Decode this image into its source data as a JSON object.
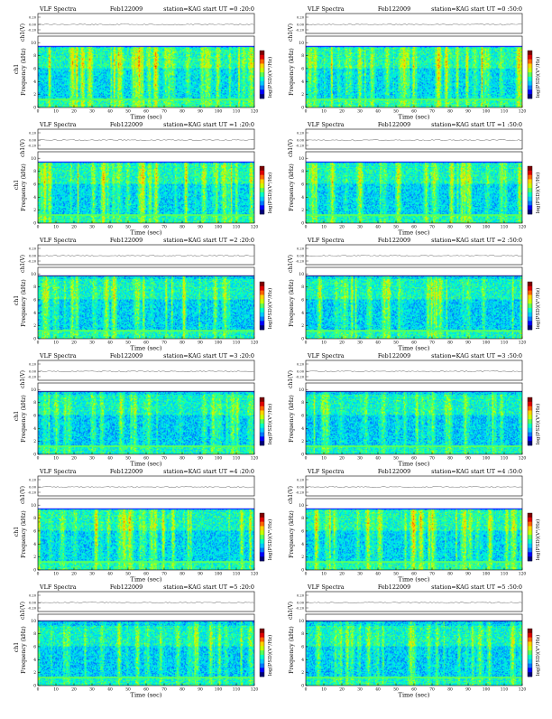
{
  "chart_data": [
    {
      "type": "heatmap",
      "title": "VLF Spectra",
      "date": "Feb122009",
      "station": "station=KAG",
      "start_label": "start  UT  =0 :20:0",
      "x": {
        "label": "Time  (sec)",
        "ticks": [
          0,
          10,
          20,
          30,
          40,
          50,
          60,
          70,
          80,
          90,
          100,
          110,
          120
        ],
        "range": [
          0,
          120
        ]
      },
      "y": {
        "label": "Frequency  (kHz)",
        "ticks": [
          0,
          2,
          4,
          6,
          8,
          10
        ],
        "range": [
          0,
          11
        ]
      },
      "channel": {
        "label": "ch1",
        "unit": "(V)",
        "ticks": [
          "0.20",
          "0.00",
          "-0.20"
        ]
      },
      "colorbar_label": "log(PSD)(V²/Hz)",
      "band_top_khz": 9.5,
      "activity": 0.85
    },
    {
      "type": "heatmap",
      "title": "VLF Spectra",
      "date": "Feb122009",
      "station": "station=KAG",
      "start_label": "start  UT  =0 :50:0",
      "x": {
        "label": "Time  (sec)",
        "ticks": [
          0,
          10,
          20,
          30,
          40,
          50,
          60,
          70,
          80,
          90,
          100,
          110,
          120
        ],
        "range": [
          0,
          120
        ]
      },
      "y": {
        "label": "Frequency  (kHz)",
        "ticks": [
          0,
          2,
          4,
          6,
          8,
          10
        ],
        "range": [
          0,
          11
        ]
      },
      "channel": {
        "label": "ch1",
        "unit": "(V)",
        "ticks": [
          "0.20",
          "0.00",
          "-0.20"
        ]
      },
      "colorbar_label": "log(PSD)(V²/Hz)",
      "band_top_khz": 9.5,
      "activity": 0.8
    },
    {
      "type": "heatmap",
      "title": "VLF Spectra",
      "date": "Feb122009",
      "station": "station=KAG",
      "start_label": "start  UT  =1 :20:0",
      "x": {
        "label": "Time  (sec)",
        "ticks": [
          0,
          10,
          20,
          30,
          40,
          50,
          60,
          70,
          80,
          90,
          100,
          110,
          120
        ],
        "range": [
          0,
          120
        ]
      },
      "y": {
        "label": "Frequency  (kHz)",
        "ticks": [
          0,
          2,
          4,
          6,
          8,
          10
        ],
        "range": [
          0,
          11
        ]
      },
      "channel": {
        "label": "ch1",
        "unit": "(V)",
        "ticks": [
          "0.20",
          "0.00",
          "-0.20"
        ]
      },
      "colorbar_label": "log(PSD)(V²/Hz)",
      "band_top_khz": 9.5,
      "activity": 0.75
    },
    {
      "type": "heatmap",
      "title": "VLF Spectra",
      "date": "Feb122009",
      "station": "station=KAG",
      "start_label": "start  UT  =1 :50:0",
      "x": {
        "label": "Time  (sec)",
        "ticks": [
          0,
          10,
          20,
          30,
          40,
          50,
          60,
          70,
          80,
          90,
          100,
          110,
          120
        ],
        "range": [
          0,
          120
        ]
      },
      "y": {
        "label": "Frequency  (kHz)",
        "ticks": [
          0,
          2,
          4,
          6,
          8,
          10
        ],
        "range": [
          0,
          11
        ]
      },
      "channel": {
        "label": "ch1",
        "unit": "(V)",
        "ticks": [
          "0.20",
          "0.00",
          "-0.20"
        ]
      },
      "colorbar_label": "log(PSD)(V²/Hz)",
      "band_top_khz": 9.5,
      "activity": 0.65
    },
    {
      "type": "heatmap",
      "title": "VLF Spectra",
      "date": "Feb122009",
      "station": "station=KAG",
      "start_label": "start  UT  =2 :20:0",
      "x": {
        "label": "Time  (sec)",
        "ticks": [
          0,
          10,
          20,
          30,
          40,
          50,
          60,
          70,
          80,
          90,
          100,
          110,
          120
        ],
        "range": [
          0,
          120
        ]
      },
      "y": {
        "label": "Frequency  (kHz)",
        "ticks": [
          0,
          2,
          4,
          6,
          8,
          10
        ],
        "range": [
          0,
          11
        ]
      },
      "channel": {
        "label": "ch1",
        "unit": "(V)",
        "ticks": [
          "0.20",
          "0.00",
          "-0.20"
        ]
      },
      "colorbar_label": "log(PSD)(V²/Hz)",
      "band_top_khz": 9.7,
      "activity": 0.6
    },
    {
      "type": "heatmap",
      "title": "VLF Spectra",
      "date": "Feb122009",
      "station": "station=KAG",
      "start_label": "start  UT  =2 :50:0",
      "x": {
        "label": "Time  (sec)",
        "ticks": [
          0,
          10,
          20,
          30,
          40,
          50,
          60,
          70,
          80,
          90,
          100,
          110,
          120
        ],
        "range": [
          0,
          120
        ]
      },
      "y": {
        "label": "Frequency  (kHz)",
        "ticks": [
          0,
          2,
          4,
          6,
          8,
          10
        ],
        "range": [
          0,
          11
        ]
      },
      "channel": {
        "label": "ch1",
        "unit": "(V)",
        "ticks": [
          "0.20",
          "0.00",
          "-0.20"
        ]
      },
      "colorbar_label": "log(PSD)(V²/Hz)",
      "band_top_khz": 9.7,
      "activity": 0.6
    },
    {
      "type": "heatmap",
      "title": "VLF Spectra",
      "date": "Feb122009",
      "station": "station=KAG",
      "start_label": "start  UT  =3 :20:0",
      "x": {
        "label": "Time  (sec)",
        "ticks": [
          0,
          10,
          20,
          30,
          40,
          50,
          60,
          70,
          80,
          90,
          100,
          110,
          120
        ],
        "range": [
          0,
          120
        ]
      },
      "y": {
        "label": "Frequency  (kHz)",
        "ticks": [
          0,
          2,
          4,
          6,
          8,
          10
        ],
        "range": [
          0,
          11
        ]
      },
      "channel": {
        "label": "ch1",
        "unit": "(V)",
        "ticks": [
          "0.20",
          "0.00",
          "-0.20"
        ]
      },
      "colorbar_label": "log(PSD)(V²/Hz)",
      "band_top_khz": 9.8,
      "activity": 0.5
    },
    {
      "type": "heatmap",
      "title": "VLF Spectra",
      "date": "Feb122009",
      "station": "station=KAG",
      "start_label": "start  UT  =3 :50:0",
      "x": {
        "label": "Time  (sec)",
        "ticks": [
          0,
          10,
          20,
          30,
          40,
          50,
          60,
          70,
          80,
          90,
          100,
          110,
          120
        ],
        "range": [
          0,
          120
        ]
      },
      "y": {
        "label": "Frequency  (kHz)",
        "ticks": [
          0,
          2,
          4,
          6,
          8,
          10
        ],
        "range": [
          0,
          11
        ]
      },
      "channel": {
        "label": "ch1",
        "unit": "(V)",
        "ticks": [
          "0.20",
          "0.00",
          "-0.20"
        ]
      },
      "colorbar_label": "log(PSD)(V²/Hz)",
      "band_top_khz": 9.8,
      "activity": 0.5
    },
    {
      "type": "heatmap",
      "title": "VLF Spectra",
      "date": "Feb122009",
      "station": "station=KAG",
      "start_label": "start  UT  =4 :20:0",
      "x": {
        "label": "Time  (sec)",
        "ticks": [
          0,
          10,
          20,
          30,
          40,
          50,
          60,
          70,
          80,
          90,
          100,
          110,
          120
        ],
        "range": [
          0,
          120
        ]
      },
      "y": {
        "label": "Frequency  (kHz)",
        "ticks": [
          0,
          2,
          4,
          6,
          8,
          10
        ],
        "range": [
          0,
          11
        ]
      },
      "channel": {
        "label": "ch1",
        "unit": "(V)",
        "ticks": [
          "0.20",
          "0.00",
          "-0.20"
        ]
      },
      "colorbar_label": "log(PSD)(V²/Hz)",
      "band_top_khz": 9.5,
      "activity": 0.7
    },
    {
      "type": "heatmap",
      "title": "VLF Spectra",
      "date": "Feb122009",
      "station": "station=KAG",
      "start_label": "start  UT  =4 :50:0",
      "x": {
        "label": "Time  (sec)",
        "ticks": [
          0,
          10,
          20,
          30,
          40,
          50,
          60,
          70,
          80,
          90,
          100,
          110,
          120
        ],
        "range": [
          0,
          120
        ]
      },
      "y": {
        "label": "Frequency  (kHz)",
        "ticks": [
          0,
          2,
          4,
          6,
          8,
          10
        ],
        "range": [
          0,
          11
        ]
      },
      "channel": {
        "label": "ch1",
        "unit": "(V)",
        "ticks": [
          "0.20",
          "0.00",
          "-0.20"
        ]
      },
      "colorbar_label": "log(PSD)(V²/Hz)",
      "band_top_khz": 9.5,
      "activity": 0.75
    },
    {
      "type": "heatmap",
      "title": "VLF Spectra",
      "date": "Feb122009",
      "station": "station=KAG",
      "start_label": "start  UT  =5 :20:0",
      "x": {
        "label": "Time  (sec)",
        "ticks": [
          0,
          10,
          20,
          30,
          40,
          50,
          60,
          70,
          80,
          90,
          100,
          110,
          120
        ],
        "range": [
          0,
          120
        ]
      },
      "y": {
        "label": "Frequency  (kHz)",
        "ticks": [
          0,
          2,
          4,
          6,
          8,
          10
        ],
        "range": [
          0,
          11
        ]
      },
      "channel": {
        "label": "ch1",
        "unit": "(V)",
        "ticks": [
          "0.20",
          "0.00",
          "-0.20"
        ]
      },
      "colorbar_label": "log(PSD)(V²/Hz)",
      "band_top_khz": 10.0,
      "activity": 0.55
    },
    {
      "type": "heatmap",
      "title": "VLF Spectra",
      "date": "Feb122009",
      "station": "station=KAG",
      "start_label": "start  UT  =5 :50:0",
      "x": {
        "label": "Time  (sec)",
        "ticks": [
          0,
          10,
          20,
          30,
          40,
          50,
          60,
          70,
          80,
          90,
          100,
          110,
          120
        ],
        "range": [
          0,
          120
        ]
      },
      "y": {
        "label": "Frequency  (kHz)",
        "ticks": [
          0,
          2,
          4,
          6,
          8,
          10
        ],
        "range": [
          0,
          11
        ]
      },
      "channel": {
        "label": "ch1",
        "unit": "(V)",
        "ticks": [
          "0.20",
          "0.00",
          "-0.20"
        ]
      },
      "colorbar_label": "log(PSD)(V²/Hz)",
      "band_top_khz": 10.0,
      "activity": 0.55
    }
  ],
  "colors": {
    "colormap": [
      "#00007a",
      "#0000ff",
      "#0077ff",
      "#00c8ff",
      "#00ffc8",
      "#5aff5a",
      "#c8ff00",
      "#ffd200",
      "#ff6400",
      "#e00000",
      "#800000"
    ],
    "axis": "#000000",
    "trace": "#888888"
  }
}
